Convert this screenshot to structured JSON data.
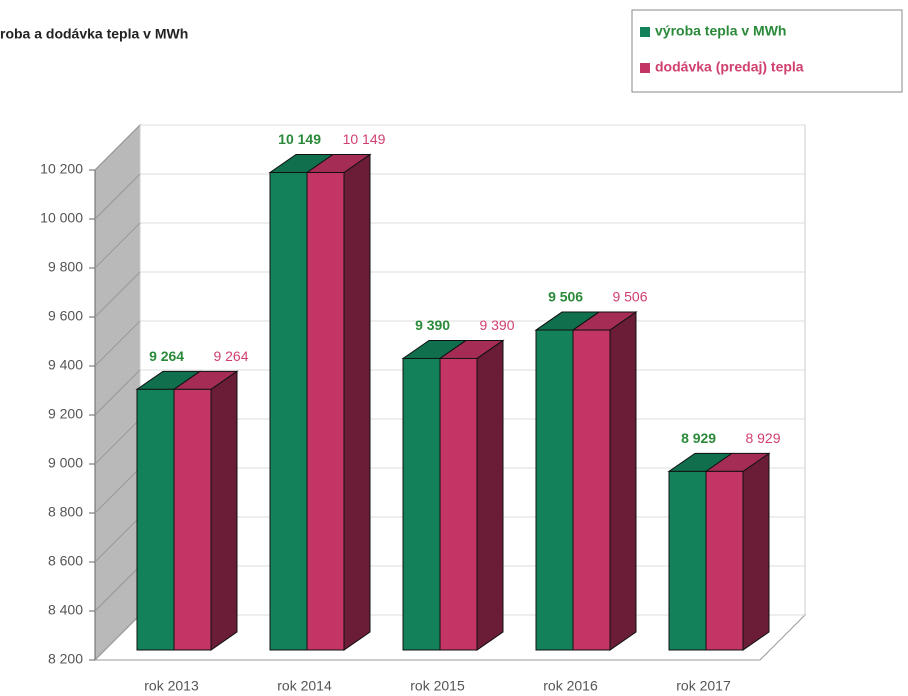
{
  "chart_data": {
    "type": "bar3d",
    "title": "roba a dodávka tepla v MWh",
    "categories": [
      "rok 2013",
      "rok 2014",
      "rok 2015",
      "rok 2016",
      "rok 2017"
    ],
    "series": [
      {
        "name": "výroba tepla v MWh",
        "color": "#13825a",
        "values": [
          9264,
          10149,
          9390,
          9506,
          8929
        ],
        "value_labels": [
          "9 264",
          "10 149",
          "9 390",
          "9 506",
          "8 929"
        ]
      },
      {
        "name": "dodávka (predaj) tepla",
        "color": "#c23564",
        "values": [
          9264,
          10149,
          9390,
          9506,
          8929
        ],
        "value_labels": [
          "9 264",
          "10 149",
          "9 390",
          "9 506",
          "8 929"
        ]
      }
    ],
    "ylim": [
      8200,
      10200
    ],
    "yticks": [
      {
        "value": 8200,
        "label": "8 200"
      },
      {
        "value": 8400,
        "label": "8 400"
      },
      {
        "value": 8600,
        "label": "8 600"
      },
      {
        "value": 8800,
        "label": "8 800"
      },
      {
        "value": 9000,
        "label": "9 000"
      },
      {
        "value": 9200,
        "label": "9 200"
      },
      {
        "value": 9400,
        "label": "9 400"
      },
      {
        "value": 9600,
        "label": "9 600"
      },
      {
        "value": 9800,
        "label": "9 800"
      },
      {
        "value": 10000,
        "label": "10 000"
      },
      {
        "value": 10200,
        "label": "10 200"
      }
    ],
    "grid": true,
    "legend": "top-right"
  }
}
